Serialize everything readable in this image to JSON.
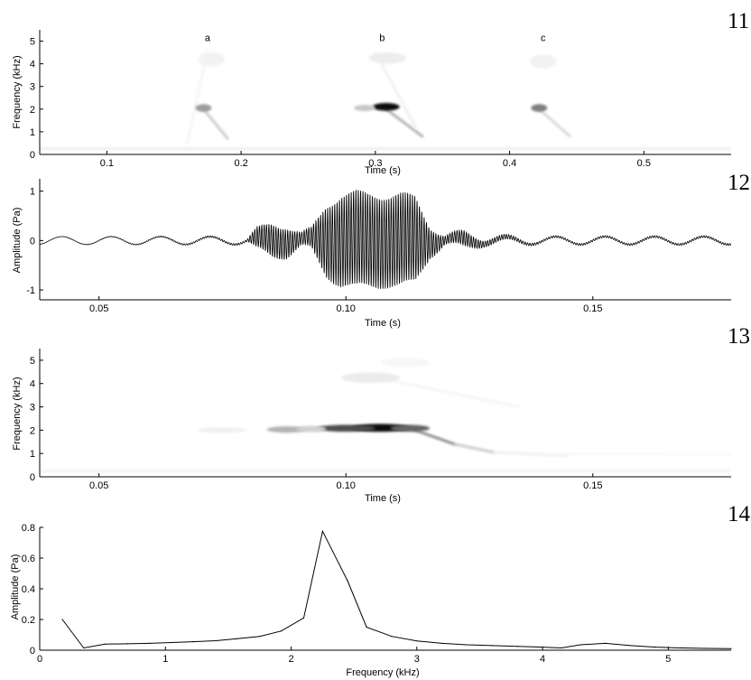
{
  "chart_data": [
    {
      "panel": "11",
      "type": "heatmap",
      "subtype": "spectrogram",
      "xlabel": "Time (s)",
      "ylabel": "Frequency (kHz)",
      "xlim": [
        0.05,
        0.565
      ],
      "ylim": [
        0,
        5.5
      ],
      "xticks": [
        0.1,
        0.2,
        0.3,
        0.4,
        0.5
      ],
      "xtick_labels": [
        "0.1",
        "0.2",
        "0.3",
        "0.4",
        "0.5"
      ],
      "yticks": [
        0,
        1,
        2,
        3,
        4,
        5
      ],
      "ytick_labels": [
        "0",
        "1",
        "2",
        "3",
        "4",
        "5"
      ],
      "annotations": [
        {
          "text": "a",
          "x": 0.175,
          "y": 5.0
        },
        {
          "text": "b",
          "x": 0.305,
          "y": 5.0
        },
        {
          "text": "c",
          "x": 0.425,
          "y": 5.0
        }
      ],
      "blobs": [
        {
          "t": 0.172,
          "f": 2.05,
          "dt": 0.006,
          "df": 0.17,
          "level": 0.38
        },
        {
          "t": 0.308,
          "f": 2.1,
          "dt": 0.01,
          "df": 0.17,
          "level": 0.95
        },
        {
          "t": 0.292,
          "f": 2.05,
          "dt": 0.008,
          "df": 0.14,
          "level": 0.22
        },
        {
          "t": 0.422,
          "f": 2.05,
          "dt": 0.006,
          "df": 0.17,
          "level": 0.5
        },
        {
          "t": 0.309,
          "f": 4.25,
          "dt": 0.014,
          "df": 0.25,
          "level": 0.07
        },
        {
          "t": 0.178,
          "f": 4.2,
          "dt": 0.01,
          "df": 0.3,
          "level": 0.05
        },
        {
          "t": 0.425,
          "f": 4.1,
          "dt": 0.01,
          "df": 0.3,
          "level": 0.05
        }
      ],
      "sweeps": [
        {
          "t0": 0.172,
          "f0": 2.0,
          "t1": 0.19,
          "f1": 0.7,
          "level": 0.2
        },
        {
          "t0": 0.308,
          "f0": 2.0,
          "t1": 0.335,
          "f1": 0.8,
          "level": 0.3
        },
        {
          "t0": 0.422,
          "f0": 2.0,
          "t1": 0.445,
          "f1": 0.8,
          "level": 0.15
        },
        {
          "t0": 0.16,
          "f0": 0.5,
          "t1": 0.175,
          "f1": 4.6,
          "level": 0.04
        },
        {
          "t0": 0.3,
          "f0": 4.5,
          "t1": 0.33,
          "f1": 1.2,
          "level": 0.06
        }
      ],
      "baseline": {
        "f": 0.25,
        "level": 0.07
      }
    },
    {
      "panel": "12",
      "type": "line",
      "subtype": "waveform",
      "xlabel": "Time (s)",
      "ylabel": "Amplitude (Pa)",
      "xlim": [
        0.038,
        0.178
      ],
      "ylim": [
        -1.2,
        1.25
      ],
      "xticks": [
        0.05,
        0.1,
        0.15
      ],
      "xtick_labels": [
        "0.05",
        "0.10",
        "0.15"
      ],
      "yticks": [
        -1,
        0,
        1
      ],
      "ytick_labels": [
        "-1",
        "0",
        "1"
      ],
      "carrier_khz": 2.1,
      "low_frequency_component": {
        "frequency_khz": 0.1,
        "amplitude": 0.08
      },
      "envelope": {
        "t": [
          0.038,
          0.08,
          0.082,
          0.085,
          0.088,
          0.091,
          0.093,
          0.096,
          0.099,
          0.102,
          0.105,
          0.108,
          0.111,
          0.114,
          0.117,
          0.12,
          0.124,
          0.128,
          0.132,
          0.136,
          0.14,
          0.178
        ],
        "a": [
          0.0,
          0.02,
          0.2,
          0.32,
          0.3,
          0.12,
          0.2,
          0.7,
          0.9,
          0.95,
          0.92,
          0.9,
          0.92,
          0.85,
          0.3,
          0.08,
          0.15,
          0.06,
          0.05,
          0.03,
          0.02,
          0.02
        ]
      }
    },
    {
      "panel": "13",
      "type": "heatmap",
      "subtype": "spectrogram",
      "xlabel": "Time (s)",
      "ylabel": "Frequency (kHz)",
      "xlim": [
        0.038,
        0.178
      ],
      "ylim": [
        0,
        5.5
      ],
      "xticks": [
        0.05,
        0.1,
        0.15
      ],
      "xtick_labels": [
        "0.05",
        "0.10",
        "0.15"
      ],
      "yticks": [
        0,
        1,
        2,
        3,
        4,
        5
      ],
      "ytick_labels": [
        "0",
        "1",
        "2",
        "3",
        "4",
        "5"
      ],
      "blobs": [
        {
          "t": 0.107,
          "f": 2.1,
          "dt": 0.006,
          "df": 0.17,
          "level": 0.95
        },
        {
          "t": 0.1,
          "f": 2.08,
          "dt": 0.006,
          "df": 0.15,
          "level": 0.7
        },
        {
          "t": 0.113,
          "f": 2.08,
          "dt": 0.004,
          "df": 0.15,
          "level": 0.6
        },
        {
          "t": 0.088,
          "f": 2.03,
          "dt": 0.004,
          "df": 0.14,
          "level": 0.3
        },
        {
          "t": 0.093,
          "f": 2.05,
          "dt": 0.003,
          "df": 0.14,
          "level": 0.18
        },
        {
          "t": 0.075,
          "f": 2.0,
          "dt": 0.005,
          "df": 0.12,
          "level": 0.06
        },
        {
          "t": 0.105,
          "f": 4.25,
          "dt": 0.006,
          "df": 0.22,
          "level": 0.08
        },
        {
          "t": 0.112,
          "f": 4.9,
          "dt": 0.005,
          "df": 0.2,
          "level": 0.03
        }
      ],
      "sweeps": [
        {
          "t0": 0.114,
          "f0": 2.0,
          "t1": 0.122,
          "f1": 1.4,
          "level": 0.45
        },
        {
          "t0": 0.122,
          "f0": 1.4,
          "t1": 0.13,
          "f1": 1.05,
          "level": 0.2
        },
        {
          "t0": 0.13,
          "f0": 1.05,
          "t1": 0.145,
          "f1": 0.9,
          "level": 0.06
        },
        {
          "t0": 0.105,
          "f0": 4.3,
          "t1": 0.135,
          "f1": 3.0,
          "level": 0.04
        },
        {
          "t0": 0.14,
          "f0": 1.0,
          "t1": 0.178,
          "f1": 0.95,
          "level": 0.03
        }
      ],
      "baseline": {
        "f": 0.25,
        "level": 0.05
      }
    },
    {
      "panel": "14",
      "type": "line",
      "subtype": "spectrum",
      "xlabel": "Frequency (kHz)",
      "ylabel": "Amplitude (Pa)",
      "xlim": [
        0,
        5.5
      ],
      "ylim": [
        0,
        0.8
      ],
      "xticks": [
        0,
        1,
        2,
        3,
        4,
        5
      ],
      "xtick_labels": [
        "0",
        "1",
        "2",
        "3",
        "4",
        "5"
      ],
      "yticks": [
        0,
        0.2,
        0.4,
        0.6,
        0.8
      ],
      "ytick_labels": [
        "0",
        "0.2",
        "0.4",
        "0.6",
        "0.8"
      ],
      "x": [
        0.18,
        0.35,
        0.52,
        0.7,
        0.87,
        1.05,
        1.22,
        1.4,
        1.57,
        1.75,
        1.92,
        2.1,
        2.25,
        2.45,
        2.6,
        2.8,
        3.0,
        3.2,
        3.4,
        3.6,
        3.8,
        4.0,
        4.15,
        4.3,
        4.5,
        4.7,
        4.9,
        5.1,
        5.3,
        5.5
      ],
      "y": [
        0.2,
        0.015,
        0.04,
        0.042,
        0.045,
        0.05,
        0.055,
        0.062,
        0.075,
        0.09,
        0.125,
        0.21,
        0.775,
        0.45,
        0.15,
        0.09,
        0.06,
        0.045,
        0.035,
        0.03,
        0.025,
        0.02,
        0.015,
        0.035,
        0.045,
        0.03,
        0.02,
        0.015,
        0.012,
        0.01
      ]
    }
  ]
}
